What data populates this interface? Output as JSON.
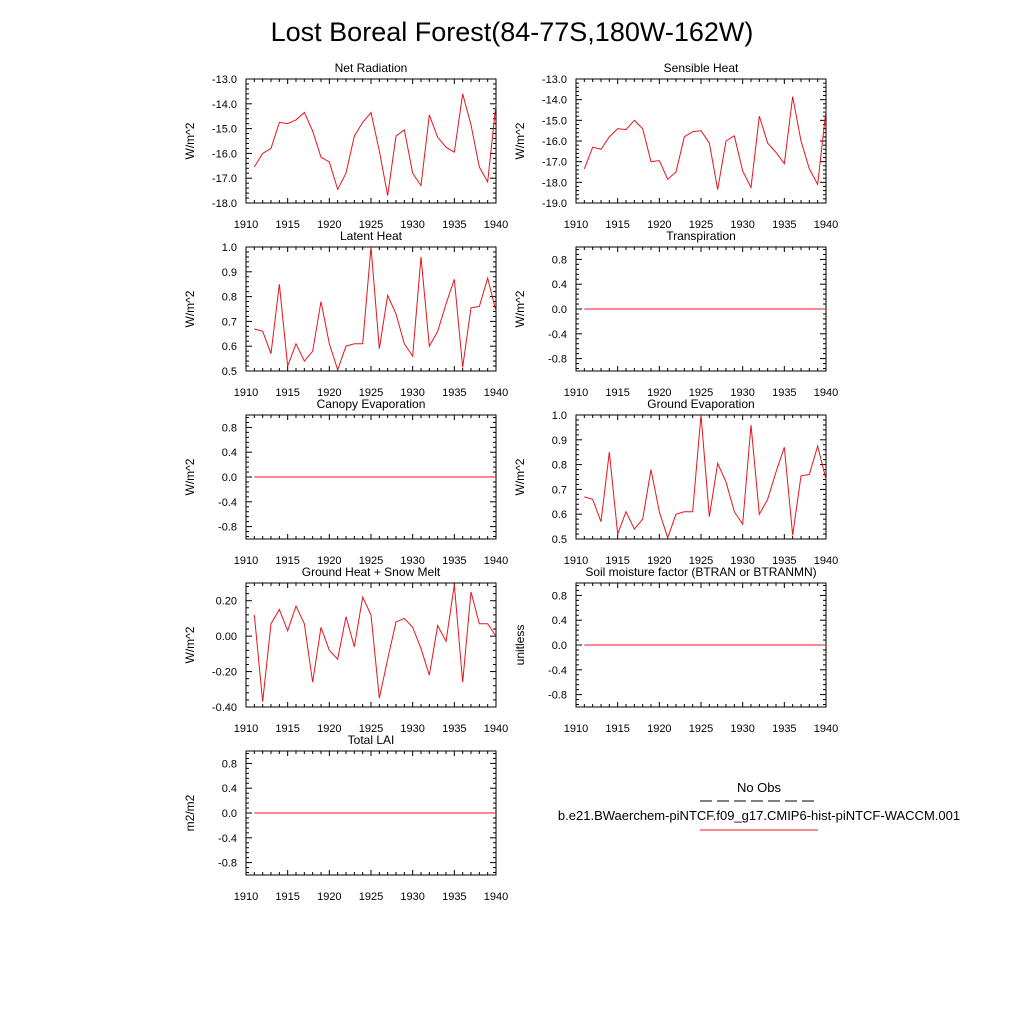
{
  "title": "Lost Boreal Forest(84-77S,180W-162W)",
  "colors": {
    "series": "#e8141c",
    "obs": "#000000"
  },
  "legend": {
    "items": [
      {
        "label": "No Obs",
        "style": "dashed",
        "color": "#000000"
      },
      {
        "label": "b.e21.BWaerchem-piNTCF.f09_g17.CMIP6-hist-piNTCF-WACCM.001",
        "style": "solid",
        "color": "#e8141c"
      }
    ]
  },
  "chart_data": [
    {
      "type": "line",
      "title": "Net Radiation",
      "xlabel": "",
      "ylabel": "W/m^2",
      "xlim": [
        1910,
        1940
      ],
      "ylim": [
        -18.0,
        -13.0
      ],
      "xticks": [
        1910,
        1915,
        1920,
        1925,
        1930,
        1935,
        1940
      ],
      "yticks": [
        "-18.0",
        "-17.0",
        "-16.0",
        "-15.0",
        "-14.0",
        "-13.0"
      ],
      "x": [
        1911,
        1912,
        1913,
        1914,
        1915,
        1916,
        1917,
        1918,
        1919,
        1920,
        1921,
        1922,
        1923,
        1924,
        1925,
        1926,
        1927,
        1928,
        1929,
        1930,
        1931,
        1932,
        1933,
        1934,
        1935,
        1936,
        1937,
        1938,
        1939,
        1940
      ],
      "series": [
        {
          "values": [
            -16.55,
            -16.0,
            -15.8,
            -14.75,
            -14.8,
            -14.65,
            -14.35,
            -15.1,
            -16.15,
            -16.35,
            -17.45,
            -16.8,
            -15.3,
            -14.75,
            -14.35,
            -15.9,
            -17.7,
            -15.3,
            -15.05,
            -16.8,
            -17.3,
            -14.45,
            -15.35,
            -15.75,
            -15.95,
            -13.6,
            -14.85,
            -16.55,
            -17.15,
            -14.0
          ]
        }
      ]
    },
    {
      "type": "line",
      "title": "Sensible Heat",
      "xlabel": "",
      "ylabel": "W/m^2",
      "xlim": [
        1910,
        1940
      ],
      "ylim": [
        -19.0,
        -13.0
      ],
      "xticks": [
        1910,
        1915,
        1920,
        1925,
        1930,
        1935,
        1940
      ],
      "yticks": [
        "-19.0",
        "-18.0",
        "-17.0",
        "-16.0",
        "-15.0",
        "-14.0",
        "-13.0"
      ],
      "x": [
        1911,
        1912,
        1913,
        1914,
        1915,
        1916,
        1917,
        1918,
        1919,
        1920,
        1921,
        1922,
        1923,
        1924,
        1925,
        1926,
        1927,
        1928,
        1929,
        1930,
        1931,
        1932,
        1933,
        1934,
        1935,
        1936,
        1937,
        1938,
        1939,
        1940
      ],
      "series": [
        {
          "values": [
            -17.35,
            -16.3,
            -16.4,
            -15.8,
            -15.4,
            -15.45,
            -15.0,
            -15.4,
            -17.0,
            -16.95,
            -17.85,
            -17.5,
            -15.8,
            -15.55,
            -15.5,
            -16.1,
            -18.35,
            -16.0,
            -15.75,
            -17.45,
            -18.25,
            -14.8,
            -16.1,
            -16.55,
            -17.1,
            -13.85,
            -16.0,
            -17.35,
            -18.1,
            -14.5
          ]
        }
      ]
    },
    {
      "type": "line",
      "title": "Latent Heat",
      "xlabel": "",
      "ylabel": "W/m^2",
      "xlim": [
        1910,
        1940
      ],
      "ylim": [
        0.5,
        1.0
      ],
      "xticks": [
        1910,
        1915,
        1920,
        1925,
        1930,
        1935,
        1940
      ],
      "yticks": [
        "0.5",
        "0.6",
        "0.7",
        "0.8",
        "0.9",
        "1.0"
      ],
      "x": [
        1911,
        1912,
        1913,
        1914,
        1915,
        1916,
        1917,
        1918,
        1919,
        1920,
        1921,
        1922,
        1923,
        1924,
        1925,
        1926,
        1927,
        1928,
        1929,
        1930,
        1931,
        1932,
        1933,
        1934,
        1935,
        1936,
        1937,
        1938,
        1939,
        1940
      ],
      "series": [
        {
          "values": [
            0.67,
            0.66,
            0.57,
            0.85,
            0.52,
            0.61,
            0.54,
            0.58,
            0.78,
            0.61,
            0.505,
            0.6,
            0.61,
            0.61,
            1.0,
            0.59,
            0.805,
            0.73,
            0.61,
            0.56,
            0.96,
            0.6,
            0.66,
            0.77,
            0.87,
            0.515,
            0.755,
            0.76,
            0.875,
            0.74
          ]
        }
      ]
    },
    {
      "type": "line",
      "title": "Transpiration",
      "xlabel": "",
      "ylabel": "W/m^2",
      "xlim": [
        1910,
        1940
      ],
      "ylim": [
        -1.0,
        1.0
      ],
      "xticks": [
        1910,
        1915,
        1920,
        1925,
        1930,
        1935,
        1940
      ],
      "yticks": [
        "-0.8",
        "-0.4",
        "0.0",
        "0.4",
        "0.8"
      ],
      "x": [
        1911,
        1940
      ],
      "series": [
        {
          "values": [
            0.0,
            0.0
          ]
        }
      ]
    },
    {
      "type": "line",
      "title": "Canopy Evaporation",
      "xlabel": "",
      "ylabel": "W/m^2",
      "xlim": [
        1910,
        1940
      ],
      "ylim": [
        -1.0,
        1.0
      ],
      "xticks": [
        1910,
        1915,
        1920,
        1925,
        1930,
        1935,
        1940
      ],
      "yticks": [
        "-0.8",
        "-0.4",
        "0.0",
        "0.4",
        "0.8"
      ],
      "x": [
        1911,
        1940
      ],
      "series": [
        {
          "values": [
            0.0,
            0.0
          ]
        }
      ]
    },
    {
      "type": "line",
      "title": "Ground Evaporation",
      "xlabel": "",
      "ylabel": "W/m^2",
      "xlim": [
        1910,
        1940
      ],
      "ylim": [
        0.5,
        1.0
      ],
      "xticks": [
        1910,
        1915,
        1920,
        1925,
        1930,
        1935,
        1940
      ],
      "yticks": [
        "0.5",
        "0.6",
        "0.7",
        "0.8",
        "0.9",
        "1.0"
      ],
      "x": [
        1911,
        1912,
        1913,
        1914,
        1915,
        1916,
        1917,
        1918,
        1919,
        1920,
        1921,
        1922,
        1923,
        1924,
        1925,
        1926,
        1927,
        1928,
        1929,
        1930,
        1931,
        1932,
        1933,
        1934,
        1935,
        1936,
        1937,
        1938,
        1939,
        1940
      ],
      "series": [
        {
          "values": [
            0.67,
            0.66,
            0.57,
            0.85,
            0.52,
            0.61,
            0.54,
            0.58,
            0.78,
            0.61,
            0.505,
            0.6,
            0.61,
            0.61,
            1.0,
            0.59,
            0.805,
            0.73,
            0.61,
            0.56,
            0.96,
            0.6,
            0.66,
            0.77,
            0.87,
            0.515,
            0.755,
            0.76,
            0.875,
            0.74
          ]
        }
      ]
    },
    {
      "type": "line",
      "title": "Ground Heat + Snow Melt",
      "xlabel": "",
      "ylabel": "W/m^2",
      "xlim": [
        1910,
        1940
      ],
      "ylim": [
        -0.4,
        0.3
      ],
      "xticks": [
        1910,
        1915,
        1920,
        1925,
        1930,
        1935,
        1940
      ],
      "yticks": [
        "-0.40",
        "-0.20",
        "0.00",
        "0.20"
      ],
      "x": [
        1911,
        1912,
        1913,
        1914,
        1915,
        1916,
        1917,
        1918,
        1919,
        1920,
        1921,
        1922,
        1923,
        1924,
        1925,
        1926,
        1927,
        1928,
        1929,
        1930,
        1931,
        1932,
        1933,
        1934,
        1935,
        1936,
        1937,
        1938,
        1939,
        1940
      ],
      "series": [
        {
          "values": [
            0.12,
            -0.37,
            0.07,
            0.15,
            0.03,
            0.17,
            0.07,
            -0.26,
            0.05,
            -0.08,
            -0.13,
            0.11,
            -0.06,
            0.22,
            0.12,
            -0.35,
            -0.13,
            0.08,
            0.1,
            0.05,
            -0.07,
            -0.22,
            0.06,
            -0.03,
            0.29,
            -0.26,
            0.25,
            0.07,
            0.07,
            0.0
          ]
        }
      ]
    },
    {
      "type": "line",
      "title": "Soil moisture factor (BTRAN or BTRANMN)",
      "xlabel": "",
      "ylabel": "unitless",
      "xlim": [
        1910,
        1940
      ],
      "ylim": [
        -1.0,
        1.0
      ],
      "xticks": [
        1910,
        1915,
        1920,
        1925,
        1930,
        1935,
        1940
      ],
      "yticks": [
        "-0.8",
        "-0.4",
        "0.0",
        "0.4",
        "0.8"
      ],
      "x": [
        1911,
        1940
      ],
      "series": [
        {
          "values": [
            0.0,
            0.0
          ]
        }
      ]
    },
    {
      "type": "line",
      "title": "Total LAI",
      "xlabel": "",
      "ylabel": "m2/m2",
      "xlim": [
        1910,
        1940
      ],
      "ylim": [
        -1.0,
        1.0
      ],
      "xticks": [
        1910,
        1915,
        1920,
        1925,
        1930,
        1935,
        1940
      ],
      "yticks": [
        "-0.8",
        "-0.4",
        "0.0",
        "0.4",
        "0.8"
      ],
      "x": [
        1911,
        1940
      ],
      "series": [
        {
          "values": [
            0.0,
            0.0
          ]
        }
      ]
    }
  ]
}
